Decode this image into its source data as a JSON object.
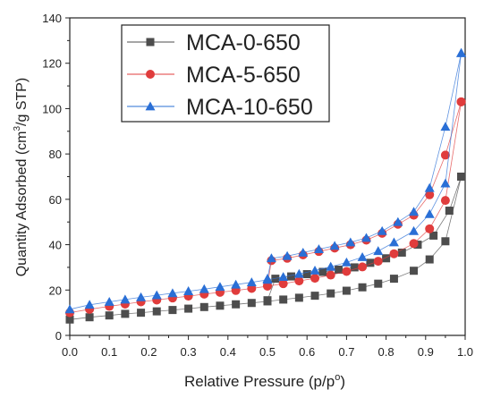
{
  "chart_data": {
    "type": "scatter",
    "xlabel_main": "Relative Pressure (p/p",
    "xlabel_sup": "o",
    "xlabel_tail": ")",
    "ylabel_main": "Quantity Adsorbed (cm",
    "ylabel_sup": "3",
    "ylabel_tail": "/g STP)",
    "xlim": [
      0.0,
      1.0
    ],
    "ylim": [
      0,
      140
    ],
    "x_ticks": [
      "0.0",
      "0.1",
      "0.2",
      "0.3",
      "0.4",
      "0.5",
      "0.6",
      "0.7",
      "0.8",
      "0.9",
      "1.0"
    ],
    "y_ticks": [
      "0",
      "20",
      "40",
      "60",
      "80",
      "100",
      "120",
      "140"
    ],
    "legend_position": "top-left",
    "grid": false,
    "series": [
      {
        "name": "MCA-0-650",
        "color": "#4d4d4d",
        "marker": "square",
        "adsorption": {
          "x": [
            0.0,
            0.05,
            0.1,
            0.14,
            0.18,
            0.22,
            0.26,
            0.3,
            0.34,
            0.38,
            0.42,
            0.46,
            0.5,
            0.54,
            0.58,
            0.62,
            0.66,
            0.7,
            0.74,
            0.78,
            0.82,
            0.87,
            0.91,
            0.95,
            0.99
          ],
          "y": [
            7,
            8,
            8.8,
            9.5,
            10,
            10.6,
            11.2,
            11.8,
            12.5,
            13.1,
            13.7,
            14.3,
            15,
            15.8,
            16.6,
            17.5,
            18.5,
            19.7,
            21.2,
            22.8,
            25,
            28.5,
            33.5,
            41.5,
            70
          ]
        },
        "desorption": {
          "x": [
            0.99,
            0.96,
            0.92,
            0.88,
            0.84,
            0.8,
            0.76,
            0.72,
            0.68,
            0.64,
            0.6,
            0.56,
            0.52,
            0.5
          ],
          "y": [
            70,
            55,
            44,
            40,
            36.5,
            34,
            32,
            30,
            29,
            28,
            27,
            26,
            25,
            15.5
          ]
        }
      },
      {
        "name": "MCA-5-650",
        "color": "#e03c3c",
        "marker": "circle",
        "adsorption": {
          "x": [
            0.0,
            0.05,
            0.1,
            0.14,
            0.18,
            0.22,
            0.26,
            0.3,
            0.34,
            0.38,
            0.42,
            0.46,
            0.5,
            0.54,
            0.58,
            0.62,
            0.66,
            0.7,
            0.74,
            0.78,
            0.82,
            0.87,
            0.91,
            0.95,
            0.99
          ],
          "y": [
            10,
            11.5,
            12.8,
            13.8,
            14.8,
            15.6,
            16.5,
            17.3,
            18.2,
            19,
            19.8,
            20.7,
            21.7,
            22.8,
            24,
            25.2,
            26.6,
            28.2,
            30.2,
            32.7,
            36,
            40.5,
            47,
            59.5,
            103
          ]
        },
        "desorption": {
          "x": [
            0.99,
            0.95,
            0.91,
            0.87,
            0.83,
            0.79,
            0.75,
            0.71,
            0.67,
            0.63,
            0.59,
            0.55,
            0.51,
            0.5
          ],
          "y": [
            103,
            79.5,
            62,
            53,
            49,
            45,
            42,
            40,
            38.5,
            37,
            35.5,
            34,
            33,
            22
          ]
        }
      },
      {
        "name": "MCA-10-650",
        "color": "#2a6fd6",
        "marker": "triangle",
        "adsorption": {
          "x": [
            0.0,
            0.05,
            0.1,
            0.14,
            0.18,
            0.22,
            0.26,
            0.3,
            0.34,
            0.38,
            0.42,
            0.46,
            0.5,
            0.54,
            0.58,
            0.62,
            0.66,
            0.7,
            0.74,
            0.78,
            0.82,
            0.87,
            0.91,
            0.95,
            0.99
          ],
          "y": [
            11.5,
            13.5,
            14.8,
            15.8,
            16.8,
            17.7,
            18.6,
            19.5,
            20.4,
            21.4,
            22.4,
            23.4,
            24.5,
            25.8,
            27.1,
            28.6,
            30.3,
            32.2,
            34.5,
            37.2,
            41,
            46,
            53.5,
            67,
            124.5
          ]
        },
        "desorption": {
          "x": [
            0.99,
            0.95,
            0.91,
            0.87,
            0.83,
            0.79,
            0.75,
            0.71,
            0.67,
            0.63,
            0.59,
            0.55,
            0.51,
            0.5
          ],
          "y": [
            124.5,
            92,
            65,
            54.5,
            50,
            46,
            43,
            41,
            39.5,
            38,
            36.5,
            35,
            34,
            25
          ]
        }
      }
    ]
  }
}
